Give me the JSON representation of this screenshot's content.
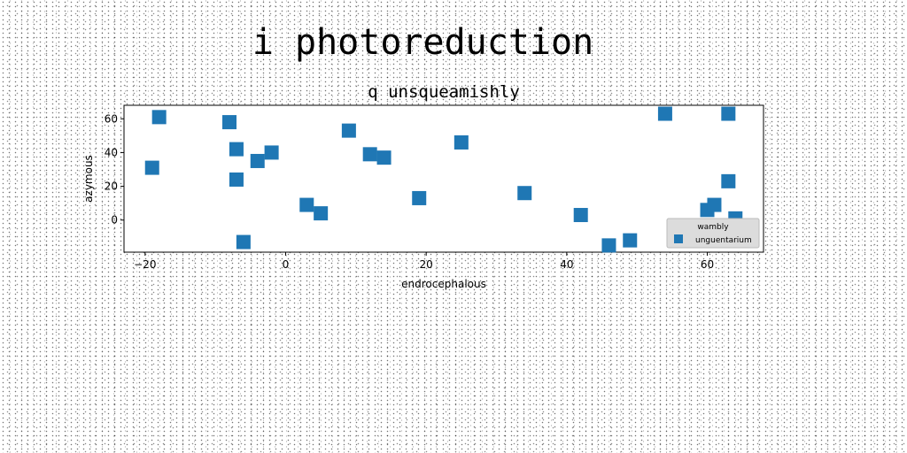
{
  "page_title": "i photoreduction",
  "chart_data": {
    "type": "scatter",
    "title": "q unsqueamishly",
    "xlabel": "endrocephalous",
    "ylabel": "azymous",
    "xlim": [
      -23,
      68
    ],
    "ylim": [
      -19,
      68
    ],
    "xticks": [
      -20,
      0,
      20,
      40,
      60
    ],
    "xtick_labels": [
      "−20",
      "0",
      "20",
      "40",
      "60"
    ],
    "yticks": [
      0,
      20,
      40,
      60
    ],
    "ytick_labels": [
      "0",
      "20",
      "40",
      "60"
    ],
    "grid": false,
    "legend": {
      "title": "wambly",
      "placement": "lower right",
      "entries": [
        "unguentarium"
      ]
    },
    "series": [
      {
        "name": "unguentarium",
        "color": "#1f77b4",
        "marker": "square",
        "x": [
          -18,
          -19,
          -8,
          -7,
          -7,
          -6,
          -4,
          -2,
          3,
          5,
          9,
          12,
          14,
          19,
          25,
          34,
          42,
          46,
          49,
          54,
          60,
          61,
          63,
          63,
          64
        ],
        "y": [
          61,
          31,
          58,
          42,
          24,
          -13,
          35,
          40,
          9,
          4,
          53,
          39,
          37,
          13,
          46,
          16,
          3,
          -15,
          -12,
          63,
          6,
          9,
          23,
          63,
          1
        ]
      }
    ]
  }
}
